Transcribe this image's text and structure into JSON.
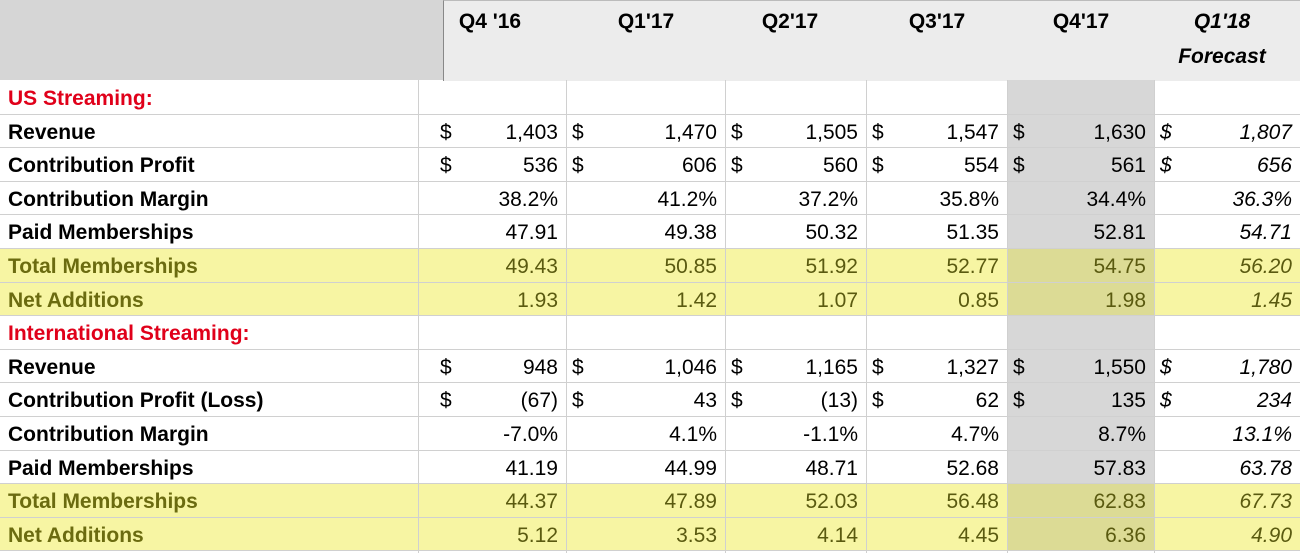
{
  "columns": [
    "Q4 '16",
    "Q1'17",
    "Q2'17",
    "Q3'17",
    "Q4'17",
    "Q1'18"
  ],
  "forecast_label": "Forecast",
  "sections": [
    {
      "title": "US Streaming:",
      "rows": [
        {
          "label": "Revenue",
          "dollar": true,
          "values": [
            "1,403",
            "1,470",
            "1,505",
            "1,547",
            "1,630",
            "1,807"
          ]
        },
        {
          "label": "Contribution Profit",
          "dollar": true,
          "values": [
            "536",
            "606",
            "560",
            "554",
            "561",
            "656"
          ]
        },
        {
          "label": "Contribution Margin",
          "dollar": false,
          "values": [
            "38.2%",
            "41.2%",
            "37.2%",
            "35.8%",
            "34.4%",
            "36.3%"
          ]
        },
        {
          "label": "Paid Memberships",
          "dollar": false,
          "values": [
            "47.91",
            "49.38",
            "50.32",
            "51.35",
            "52.81",
            "54.71"
          ]
        },
        {
          "label": "Total Memberships",
          "dollar": false,
          "highlight": true,
          "values": [
            "49.43",
            "50.85",
            "51.92",
            "52.77",
            "54.75",
            "56.20"
          ]
        },
        {
          "label": "Net Additions",
          "dollar": false,
          "highlight": true,
          "values": [
            "1.93",
            "1.42",
            "1.07",
            "0.85",
            "1.98",
            "1.45"
          ]
        }
      ]
    },
    {
      "title": "International Streaming:",
      "rows": [
        {
          "label": "Revenue",
          "dollar": true,
          "values": [
            "948",
            "1,046",
            "1,165",
            "1,327",
            "1,550",
            "1,780"
          ]
        },
        {
          "label": "Contribution Profit (Loss)",
          "dollar": true,
          "values": [
            "(67)",
            "43",
            "(13)",
            "62",
            "135",
            "234"
          ]
        },
        {
          "label": "Contribution Margin",
          "dollar": false,
          "values": [
            "-7.0%",
            "4.1%",
            "-1.1%",
            "4.7%",
            "8.7%",
            "13.1%"
          ]
        },
        {
          "label": "Paid Memberships",
          "dollar": false,
          "values": [
            "41.19",
            "44.99",
            "48.71",
            "52.68",
            "57.83",
            "63.78"
          ]
        },
        {
          "label": "Total Memberships",
          "dollar": false,
          "highlight": true,
          "values": [
            "44.37",
            "47.89",
            "52.03",
            "56.48",
            "62.83",
            "67.73"
          ]
        },
        {
          "label": "Net Additions",
          "dollar": false,
          "highlight": true,
          "values": [
            "5.12",
            "3.53",
            "4.14",
            "4.45",
            "6.36",
            "4.90"
          ]
        }
      ]
    }
  ],
  "dollar_sign": "$",
  "colors": {
    "section_title": "#e0001a",
    "highlight_row": "#f7f5a3",
    "highlight_text": "#6b6b10",
    "q4_shade": "#d7d7d7"
  }
}
